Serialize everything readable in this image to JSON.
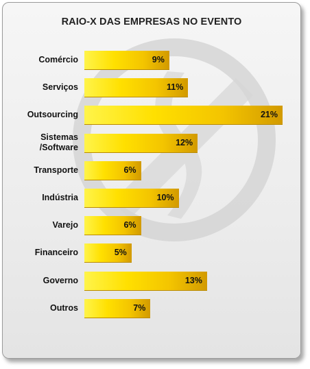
{
  "chart_data": {
    "type": "bar",
    "orientation": "horizontal",
    "title": "RAIO-X DAS EMPRESAS NO EVENTO",
    "categories": [
      "Comércio",
      "Serviços",
      "Outsourcing",
      "Sistemas\n/Software",
      "Transporte",
      "Indústria",
      "Varejo",
      "Financeiro",
      "Governo",
      "Outros"
    ],
    "values": [
      9,
      11,
      21,
      12,
      6,
      10,
      6,
      5,
      13,
      7
    ],
    "value_labels": [
      "9%",
      "11%",
      "21%",
      "12%",
      "6%",
      "10%",
      "6%",
      "5%",
      "13%",
      "7%"
    ],
    "unit": "%",
    "xlim": [
      0,
      21
    ],
    "grid": false,
    "legend": "none",
    "colors": {
      "bar_light": "#ffe000",
      "bar_dark": "#d29a00",
      "background": "#ececec"
    }
  }
}
